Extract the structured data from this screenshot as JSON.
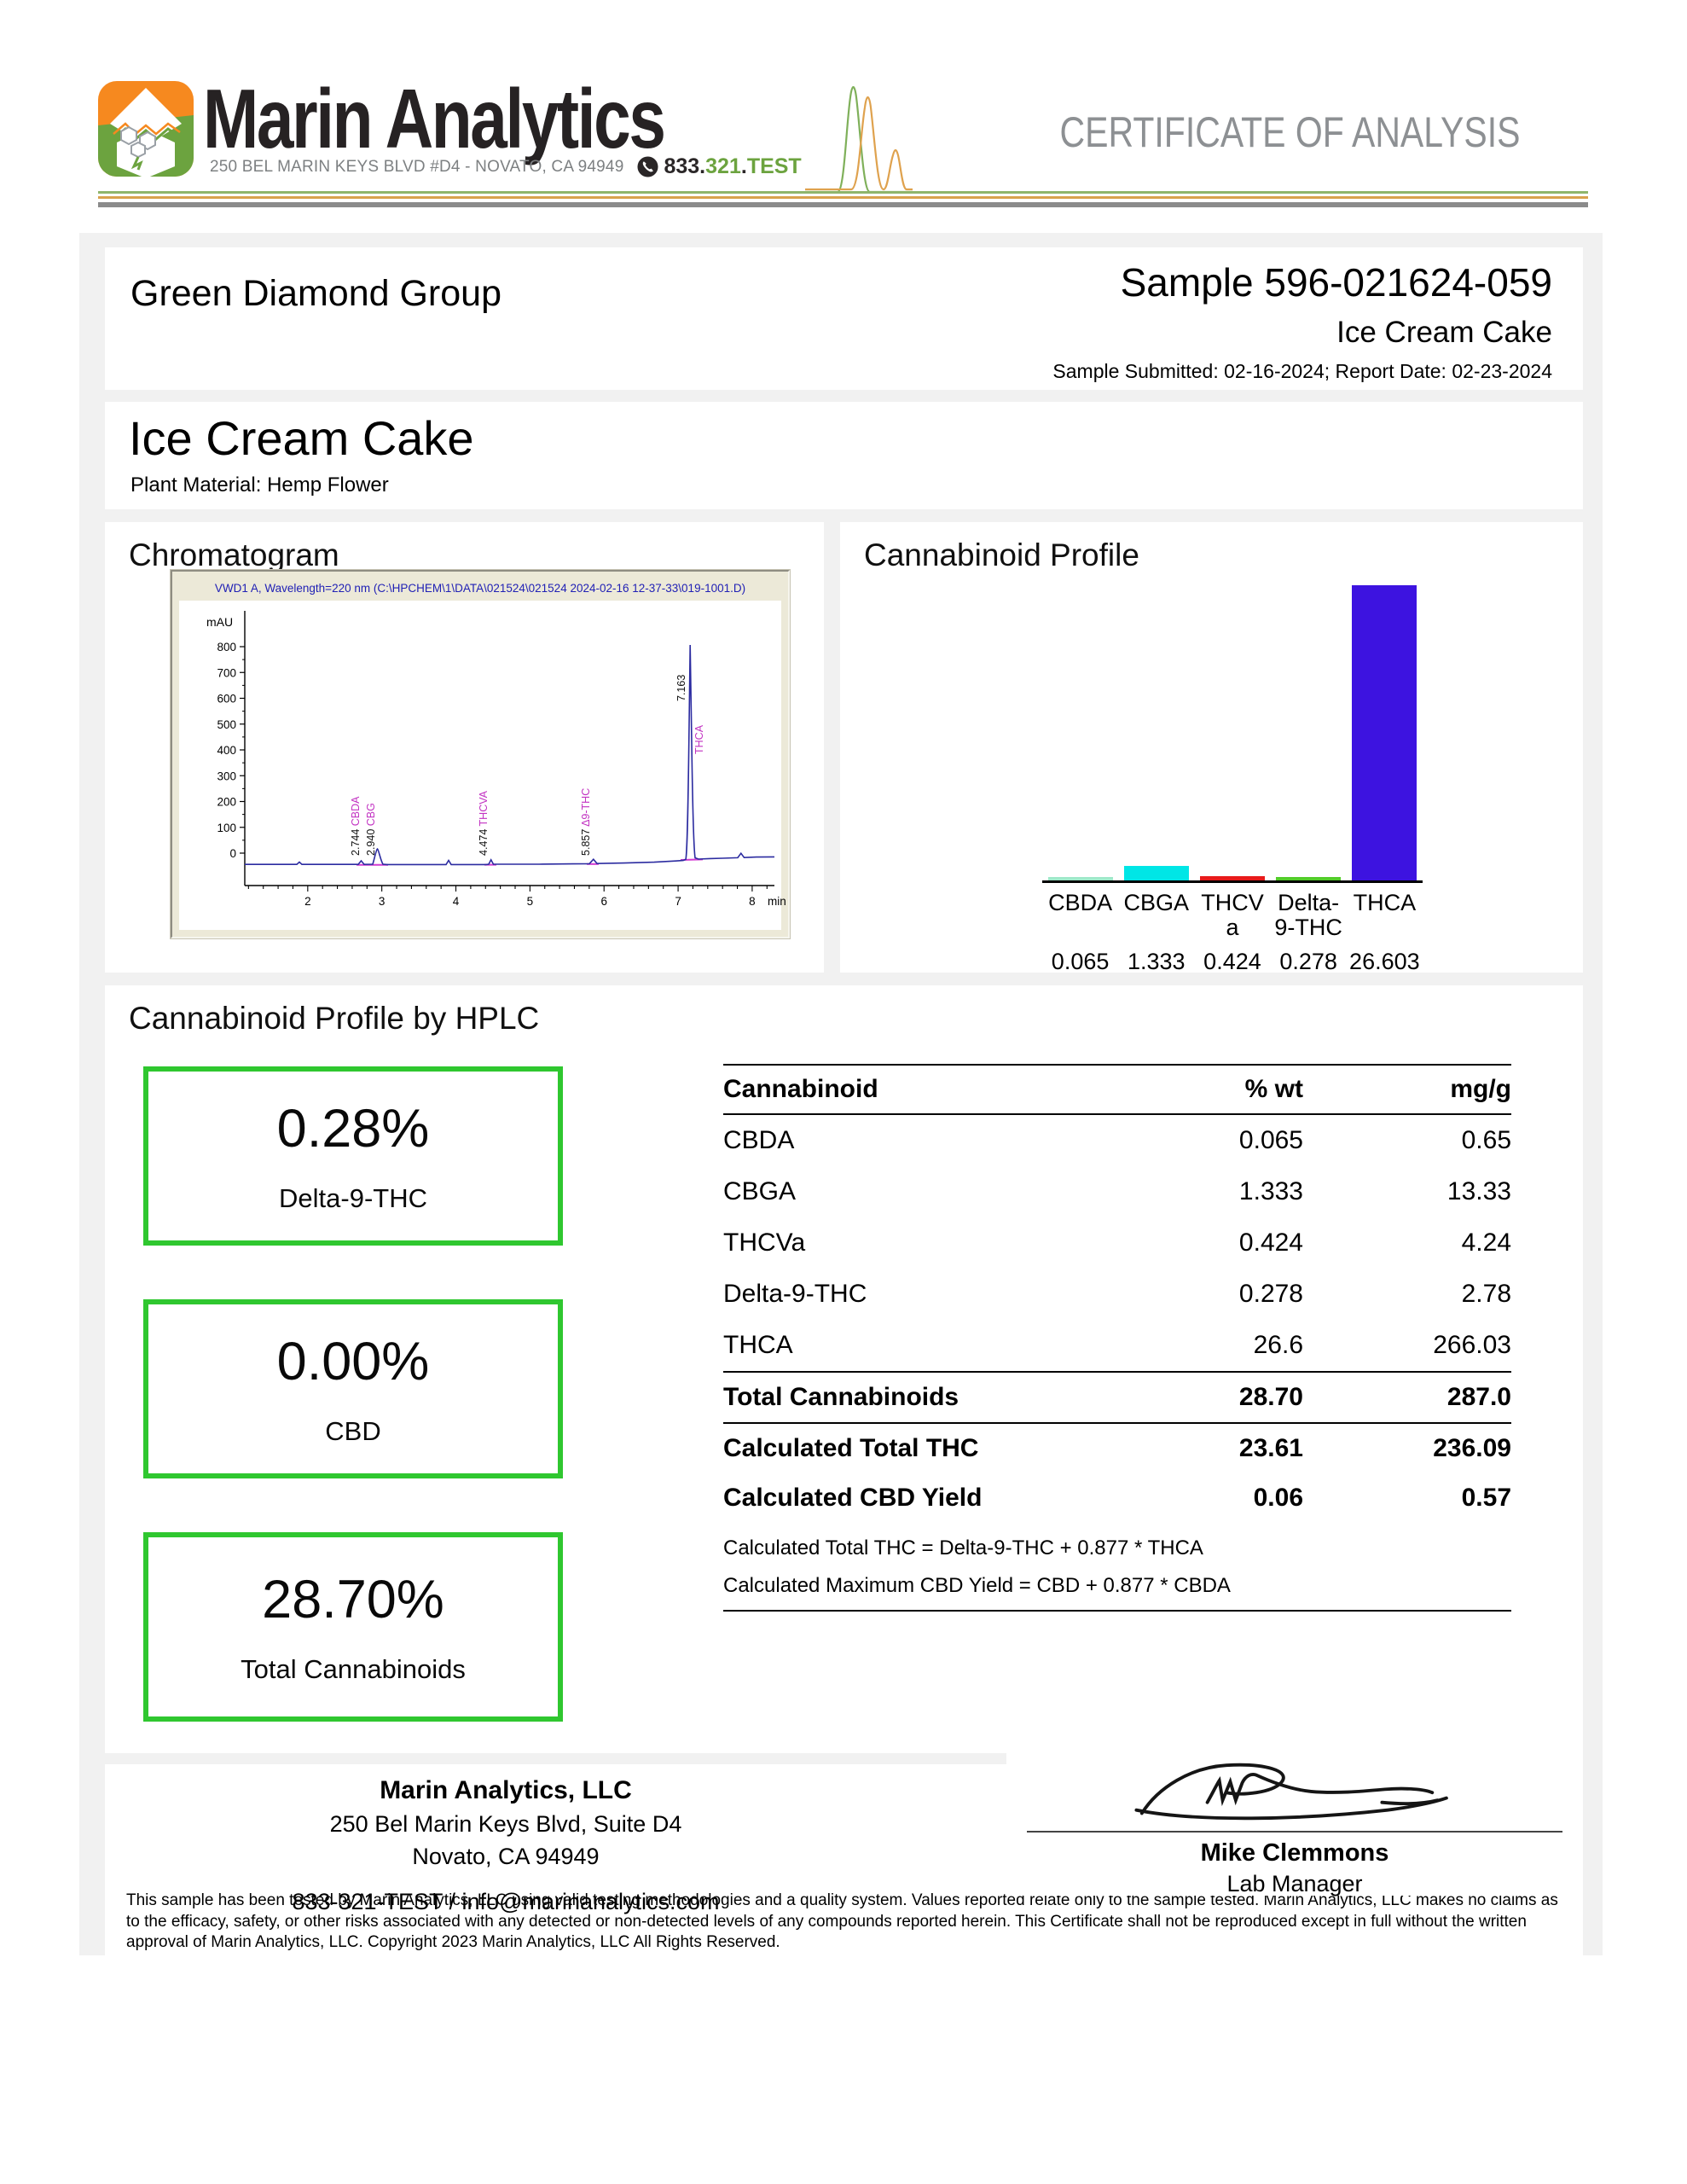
{
  "header": {
    "brand": "Marin Analytics",
    "address": "250 BEL MARIN KEYS BLVD #D4 - NOVATO, CA 94949",
    "phone": {
      "a": "833.",
      "b": "321",
      "c": ".",
      "d": "TEST"
    },
    "coa_title": "CERTIFICATE OF ANALYSIS",
    "colors": {
      "brand_orange": "#f6891f",
      "brand_green": "#6ca33f",
      "rule_gray": "#8b8b8b"
    }
  },
  "sample": {
    "client": "Green Diamond Group",
    "sample_id": "Sample 596-021624-059",
    "sample_name": "Ice Cream Cake",
    "dates": "Sample Submitted: 02-16-2024;  Report Date: 02-23-2024"
  },
  "product": {
    "name": "Ice Cream Cake",
    "material": "Plant Material: Hemp Flower"
  },
  "sections": {
    "chromatogram_heading": "Chromatogram",
    "hplc_heading": "Cannabinoid Profile by HPLC"
  },
  "chart_data": [
    {
      "type": "bar",
      "title": "Cannabinoid Profile",
      "categories": [
        "CBDA",
        "CBGA",
        "THCVa",
        "Delta-9-THC",
        "THCA"
      ],
      "categories_display": [
        "CBDA",
        "CBGA",
        "THCV\na",
        "Delta-\n9-THC",
        "THCA"
      ],
      "values": [
        0.065,
        1.333,
        0.424,
        0.278,
        26.603
      ],
      "value_labels": [
        "0.065",
        "1.333",
        "0.424",
        "0.278",
        "26.603"
      ],
      "colors": [
        "#9fe8c9",
        "#00e6e6",
        "#e81b1b",
        "#52cc29",
        "#3d13e0"
      ],
      "ylim": [
        0,
        26.603
      ],
      "grid": false,
      "legend": false
    },
    {
      "type": "line",
      "title": "VWD1 A, Wavelength=220 nm (C:\\HPCHEM\\1\\DATA\\021524\\021524 2024-02-16 12-37-33\\019-1001.D)",
      "ylabel": "mAU",
      "xlabel": "min",
      "x_range": [
        1.15,
        8.3
      ],
      "y_range": [
        -50,
        870
      ],
      "y_ticks": [
        0,
        100,
        200,
        300,
        400,
        500,
        600,
        700,
        800
      ],
      "x_ticks": [
        2,
        3,
        4,
        5,
        6,
        7,
        8
      ],
      "peaks": [
        {
          "rt": "2.744",
          "name": "CBDA",
          "height_mAU": 10
        },
        {
          "rt": "2.940",
          "name": "CBG",
          "height_mAU": 60
        },
        {
          "rt": "4.474",
          "name": "THCVA",
          "height_mAU": 18
        },
        {
          "rt": "5.857",
          "name": "Δ9-THC",
          "height_mAU": 18
        },
        {
          "rt": "7.163",
          "name": "THCA",
          "height_mAU": 810
        }
      ]
    }
  ],
  "hplc": {
    "boxes": [
      {
        "value": "0.28%",
        "label": "Delta-9-THC"
      },
      {
        "value": "0.00%",
        "label": "CBD"
      },
      {
        "value": "28.70%",
        "label": "Total Cannabinoids"
      }
    ],
    "table": {
      "headers": [
        "Cannabinoid",
        "% wt",
        "mg/g"
      ],
      "rows": [
        [
          "CBDA",
          "0.065",
          "0.65"
        ],
        [
          "CBGA",
          "1.333",
          "13.33"
        ],
        [
          "THCVa",
          "0.424",
          "4.24"
        ],
        [
          "Delta-9-THC",
          "0.278",
          "2.78"
        ],
        [
          "THCA",
          "26.6",
          "266.03"
        ]
      ],
      "total_row": [
        "Total Cannabinoids",
        "28.70",
        "287.0"
      ],
      "calc_rows": [
        [
          "Calculated Total THC",
          "23.61",
          "236.09"
        ],
        [
          "Calculated CBD Yield",
          "0.06",
          "0.57"
        ]
      ],
      "footnotes": [
        "Calculated Total THC = Delta-9-THC + 0.877 * THCA",
        "Calculated Maximum CBD Yield = CBD + 0.877 * CBDA"
      ]
    }
  },
  "footer": {
    "company": "Marin Analytics, LLC",
    "address1": "250 Bel Marin Keys Blvd, Suite D4",
    "address2": "Novato, CA 94949",
    "contact": "833-321-TEST / info@marinanalytics.com",
    "signer": "Mike Clemmons",
    "signer_title": "Lab Manager",
    "disclaimer": "This sample has been tested by Marin Analytics, LLC using valid testing methodologies and a quality system.  Values reported relate only to the sample tested.  Marin Analytics, LLC makes no claims as to the efficacy, safety, or other risks associated with any detected or non-detected levels of any compounds reported herein.  This Certificate shall not be reproduced except in full without the written approval of Marin Analytics, LLC.      Copyright 2023 Marin Analytics, LLC All Rights Reserved."
  }
}
